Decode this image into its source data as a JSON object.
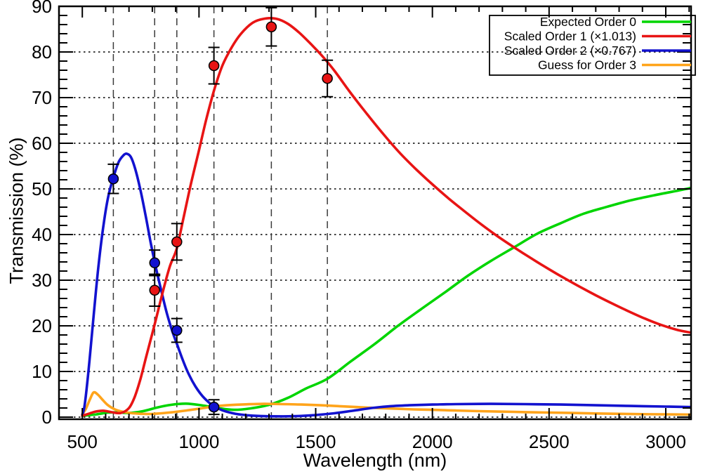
{
  "chart_data": {
    "type": "line",
    "title": "",
    "xlabel": "Wavelength (nm)",
    "ylabel": "Transmission (%)",
    "xlim": [
      400,
      3108
    ],
    "ylim": [
      -0.5,
      90
    ],
    "x_major_ticks": [
      500,
      1000,
      1500,
      2000,
      2500,
      3000
    ],
    "x_minor_step_nm": 100,
    "y_major_ticks": [
      0,
      10,
      20,
      30,
      40,
      50,
      60,
      70,
      80,
      90
    ],
    "y_minor_step": 2,
    "grid": {
      "horizontal_dotted_values": [
        0,
        10,
        20,
        30,
        40,
        50,
        60,
        70,
        80
      ],
      "vertical_dashed_wavelengths_nm": [
        633,
        810,
        905,
        1064,
        1310,
        1550
      ],
      "grid_color": "#222222"
    },
    "legend": {
      "position": "top-right",
      "entries": [
        {
          "label": "Expected Order 0",
          "color": "#00d500"
        },
        {
          "label": "Scaled Order 1 (×1.013)",
          "color": "#e81414"
        },
        {
          "label": "Scaled Order 2 (×0.767)",
          "color": "#1212cf"
        },
        {
          "label": "Guess for Order 3",
          "color": "#ffa41b"
        }
      ]
    },
    "series": [
      {
        "name": "Expected Order 0",
        "color": "#00d500",
        "points": [
          [
            500,
            0.3
          ],
          [
            560,
            0.6
          ],
          [
            610,
            1.0
          ],
          [
            650,
            1.05
          ],
          [
            700,
            0.9
          ],
          [
            760,
            1.3
          ],
          [
            820,
            2.1
          ],
          [
            880,
            2.7
          ],
          [
            945,
            2.95
          ],
          [
            1010,
            2.6
          ],
          [
            1080,
            2.0
          ],
          [
            1150,
            1.6
          ],
          [
            1220,
            1.9
          ],
          [
            1300,
            2.7
          ],
          [
            1380,
            4.2
          ],
          [
            1460,
            6.3
          ],
          [
            1550,
            8.4
          ],
          [
            1650,
            12.2
          ],
          [
            1750,
            15.9
          ],
          [
            1850,
            19.9
          ],
          [
            1950,
            23.6
          ],
          [
            2050,
            27.2
          ],
          [
            2150,
            30.9
          ],
          [
            2250,
            34.2
          ],
          [
            2350,
            37.2
          ],
          [
            2450,
            40.2
          ],
          [
            2550,
            42.5
          ],
          [
            2650,
            44.6
          ],
          [
            2750,
            46.1
          ],
          [
            2850,
            47.5
          ],
          [
            2950,
            48.6
          ],
          [
            3050,
            49.6
          ],
          [
            3108,
            50.2
          ]
        ]
      },
      {
        "name": "Guess for Order 3",
        "color": "#ffa41b",
        "points": [
          [
            500,
            0.6
          ],
          [
            515,
            1.8
          ],
          [
            532,
            3.8
          ],
          [
            548,
            5.4
          ],
          [
            565,
            5.0
          ],
          [
            585,
            3.9
          ],
          [
            610,
            2.6
          ],
          [
            640,
            1.7
          ],
          [
            675,
            1.15
          ],
          [
            715,
            0.85
          ],
          [
            755,
            0.72
          ],
          [
            795,
            0.7
          ],
          [
            840,
            0.85
          ],
          [
            890,
            1.1
          ],
          [
            945,
            1.45
          ],
          [
            1000,
            1.85
          ],
          [
            1060,
            2.3
          ],
          [
            1120,
            2.6
          ],
          [
            1200,
            2.8
          ],
          [
            1280,
            2.9
          ],
          [
            1360,
            2.85
          ],
          [
            1440,
            2.75
          ],
          [
            1520,
            2.6
          ],
          [
            1600,
            2.4
          ],
          [
            1680,
            2.2
          ],
          [
            1760,
            2.0
          ],
          [
            1840,
            1.85
          ],
          [
            1920,
            1.7
          ],
          [
            2000,
            1.6
          ],
          [
            2100,
            1.45
          ],
          [
            2200,
            1.3
          ],
          [
            2300,
            1.2
          ],
          [
            2400,
            1.1
          ],
          [
            2500,
            1.0
          ],
          [
            2600,
            0.9
          ],
          [
            2700,
            0.8
          ],
          [
            2800,
            0.72
          ],
          [
            2900,
            0.65
          ],
          [
            3000,
            0.6
          ],
          [
            3108,
            0.55
          ]
        ]
      },
      {
        "name": "Scaled Order 2 (×0.767)",
        "color": "#1212cf",
        "points": [
          [
            500,
            0.5
          ],
          [
            508,
            2
          ],
          [
            518,
            6
          ],
          [
            532,
            13
          ],
          [
            550,
            23
          ],
          [
            570,
            33.5
          ],
          [
            592,
            42.5
          ],
          [
            612,
            48.5
          ],
          [
            633,
            52.5
          ],
          [
            655,
            55.8
          ],
          [
            675,
            57.3
          ],
          [
            690,
            57.7
          ],
          [
            708,
            57.0
          ],
          [
            726,
            54.5
          ],
          [
            748,
            50.0
          ],
          [
            770,
            44.5
          ],
          [
            792,
            38.5
          ],
          [
            812,
            33.5
          ],
          [
            837,
            28.0
          ],
          [
            862,
            22.8
          ],
          [
            887,
            18.6
          ],
          [
            907,
            15.8
          ],
          [
            932,
            12.3
          ],
          [
            957,
            9.3
          ],
          [
            985,
            6.7
          ],
          [
            1015,
            4.6
          ],
          [
            1045,
            3.1
          ],
          [
            1070,
            2.2
          ],
          [
            1100,
            1.5
          ],
          [
            1140,
            0.9
          ],
          [
            1180,
            0.55
          ],
          [
            1230,
            0.33
          ],
          [
            1290,
            0.2
          ],
          [
            1360,
            0.17
          ],
          [
            1430,
            0.25
          ],
          [
            1500,
            0.45
          ],
          [
            1580,
            0.85
          ],
          [
            1660,
            1.4
          ],
          [
            1740,
            2.0
          ],
          [
            1820,
            2.4
          ],
          [
            1900,
            2.6
          ],
          [
            2000,
            2.75
          ],
          [
            2100,
            2.85
          ],
          [
            2250,
            2.9
          ],
          [
            2400,
            2.85
          ],
          [
            2550,
            2.75
          ],
          [
            2700,
            2.6
          ],
          [
            2850,
            2.45
          ],
          [
            3000,
            2.3
          ],
          [
            3108,
            2.2
          ]
        ]
      },
      {
        "name": "Scaled Order 1 (×1.013)",
        "color": "#e81414",
        "points": [
          [
            500,
            0.3
          ],
          [
            525,
            0.7
          ],
          [
            555,
            1.2
          ],
          [
            590,
            1.4
          ],
          [
            625,
            1.1
          ],
          [
            665,
            0.9
          ],
          [
            700,
            2.0
          ],
          [
            725,
            4.5
          ],
          [
            750,
            8.5
          ],
          [
            775,
            13.5
          ],
          [
            810,
            20.3
          ],
          [
            845,
            27.5
          ],
          [
            875,
            33.0
          ],
          [
            905,
            37.0
          ],
          [
            935,
            44.0
          ],
          [
            965,
            51.0
          ],
          [
            1000,
            58.5
          ],
          [
            1030,
            65.0
          ],
          [
            1064,
            71.5
          ],
          [
            1100,
            77.0
          ],
          [
            1140,
            81.0
          ],
          [
            1180,
            84.0
          ],
          [
            1230,
            86.4
          ],
          [
            1280,
            87.3
          ],
          [
            1330,
            87.3
          ],
          [
            1380,
            86.2
          ],
          [
            1430,
            84.2
          ],
          [
            1480,
            81.7
          ],
          [
            1530,
            79.0
          ],
          [
            1580,
            75.9
          ],
          [
            1650,
            71.0
          ],
          [
            1720,
            66.4
          ],
          [
            1790,
            62.0
          ],
          [
            1860,
            57.9
          ],
          [
            1930,
            54.3
          ],
          [
            2000,
            51.0
          ],
          [
            2070,
            47.9
          ],
          [
            2140,
            45.0
          ],
          [
            2210,
            42.2
          ],
          [
            2280,
            39.6
          ],
          [
            2350,
            37.2
          ],
          [
            2420,
            34.9
          ],
          [
            2490,
            32.7
          ],
          [
            2560,
            30.6
          ],
          [
            2630,
            28.6
          ],
          [
            2700,
            26.7
          ],
          [
            2770,
            24.9
          ],
          [
            2840,
            23.2
          ],
          [
            2910,
            21.6
          ],
          [
            2980,
            20.2
          ],
          [
            3050,
            19.1
          ],
          [
            3108,
            18.5
          ]
        ]
      }
    ],
    "measured_points": [
      {
        "series": "Scaled Order 2 (×0.767)",
        "color": "#1212cf",
        "x": 633,
        "y": 52.2,
        "err": 3.2
      },
      {
        "series": "Scaled Order 2 (×0.767)",
        "color": "#1212cf",
        "x": 810,
        "y": 33.8,
        "err": 2.8
      },
      {
        "series": "Scaled Order 2 (×0.767)",
        "color": "#1212cf",
        "x": 905,
        "y": 19.0,
        "err": 2.6
      },
      {
        "series": "Scaled Order 2 (×0.767)",
        "color": "#1212cf",
        "x": 1064,
        "y": 2.2,
        "err": 1.6
      },
      {
        "series": "Scaled Order 1 (×1.013)",
        "color": "#e81414",
        "x": 810,
        "y": 27.8,
        "err": 3.5
      },
      {
        "series": "Scaled Order 1 (×1.013)",
        "color": "#e81414",
        "x": 905,
        "y": 38.4,
        "err": 4.0
      },
      {
        "series": "Scaled Order 1 (×1.013)",
        "color": "#e81414",
        "x": 1064,
        "y": 77.0,
        "err": 4.0
      },
      {
        "series": "Scaled Order 1 (×1.013)",
        "color": "#e81414",
        "x": 1310,
        "y": 85.5,
        "err": 4.2
      },
      {
        "series": "Scaled Order 1 (×1.013)",
        "color": "#e81414",
        "x": 1550,
        "y": 74.2,
        "err": 4.0
      }
    ]
  }
}
